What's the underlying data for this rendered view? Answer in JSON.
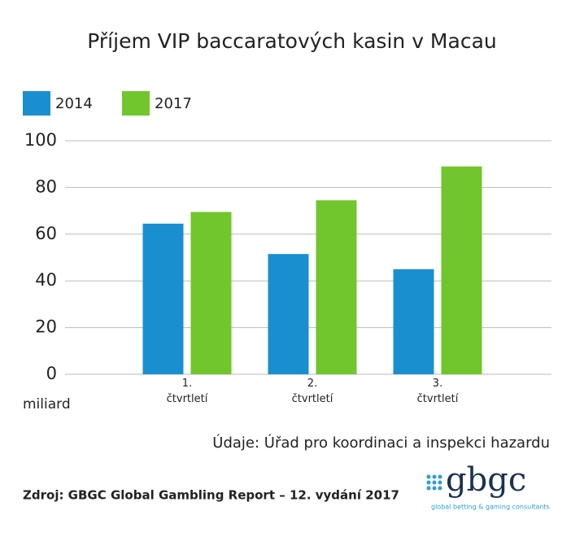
{
  "chart_data": {
    "type": "bar",
    "title": "Příjem VIP baccaratových kasin v Macau",
    "y_unit_label": "miliard",
    "categories": [
      "1. čtvrtletí",
      "2. čtvrtletí",
      "3. čtvrtletí"
    ],
    "series": [
      {
        "name": "2014",
        "color": "#1a8fd0",
        "values": [
          64.5,
          51.5,
          45
        ]
      },
      {
        "name": "2017",
        "color": "#72c62d",
        "values": [
          69.5,
          74.5,
          89
        ]
      }
    ],
    "ylim": [
      0,
      100
    ],
    "yticks": [
      0,
      20,
      40,
      60,
      80,
      100
    ],
    "grid": true,
    "legend_position": "top-left",
    "note": "Údaje: Úřad pro koordinaci a inspekci hazardu",
    "source": "Zdroj: GBGC Global Gambling Report – 12. vydání 2017",
    "logo": {
      "name": "gbgc",
      "tagline": "global betting & gaming consultants"
    }
  }
}
